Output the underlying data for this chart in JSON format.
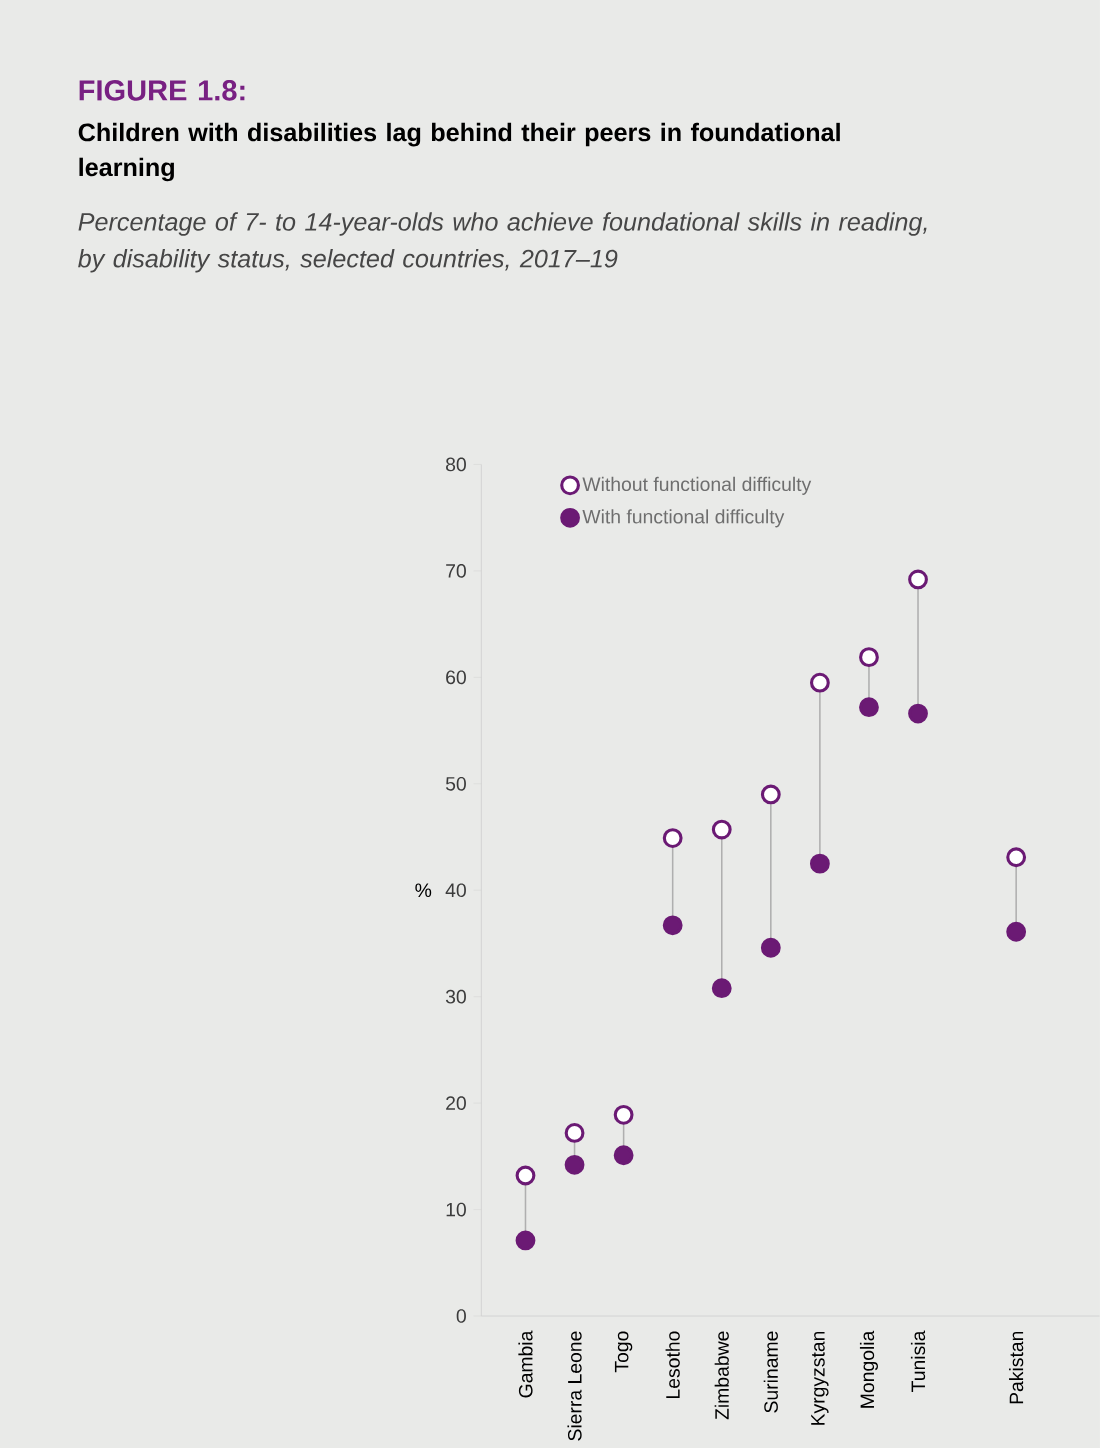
{
  "chart_data": {
    "type": "scatter",
    "title": "FIGURE 1.8:",
    "subtitle": "Children with disabilities lag behind their peers in foundational learning",
    "annotations": [
      "Percentage of 7- to 14-year-olds who achieve foundational skills in reading, by disability status, selected countries, 2017–19"
    ],
    "ylabel": "%",
    "categories": [
      "Gambia",
      "Sierra Leone",
      "Togo",
      "Lesotho",
      "Zimbabwe",
      "Suriname",
      "Kyrgyzstan",
      "Mongolia",
      "Tunisia",
      null,
      "Pakistan"
    ],
    "series": [
      {
        "name": "Without functional difficulty",
        "color": "#6b1a74",
        "values": [
          13.2,
          17.2,
          18.9,
          44.9,
          45.7,
          49.0,
          59.5,
          61.9,
          69.2,
          null,
          43.1
        ]
      },
      {
        "name": "With functional difficulty",
        "color": "#6b1a74",
        "values": [
          7.1,
          14.2,
          15.1,
          36.7,
          30.8,
          34.6,
          42.5,
          57.2,
          56.6,
          null,
          36.1
        ]
      }
    ],
    "ylim": [
      0,
      80
    ],
    "yticks": [
      0,
      10,
      20,
      30,
      40,
      50,
      60,
      70,
      80
    ],
    "marker": "circle",
    "legend": "top",
    "grid": false
  }
}
